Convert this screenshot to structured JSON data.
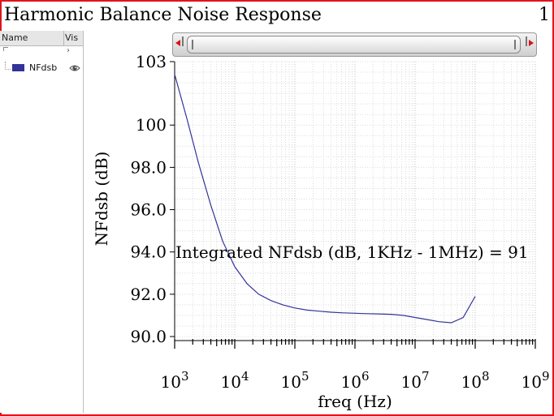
{
  "window": {
    "title": "Harmonic Balance Noise Response",
    "page_number": "1"
  },
  "side_panel": {
    "col_name": "Name",
    "col_vis": "Vis",
    "collapse_glyph": "›",
    "items": [
      {
        "label": "NFdsb",
        "color": "#33339a",
        "visibility_icon": "eye-icon"
      }
    ]
  },
  "scrollbar": {
    "left_arrow_icon": "arrow-left-icon",
    "right_arrow_icon": "arrow-right-icon",
    "arrow_color": "#d8141e"
  },
  "chart_data": {
    "type": "line",
    "xlabel": "freq (Hz)",
    "ylabel": "NFdsb (dB)",
    "x_scale": "log",
    "xlim": [
      1000,
      1000000000
    ],
    "ylim": [
      90.0,
      103.0
    ],
    "x_ticks": [
      {
        "base": "10",
        "exp": "3",
        "value": 1000
      },
      {
        "base": "10",
        "exp": "4",
        "value": 10000
      },
      {
        "base": "10",
        "exp": "5",
        "value": 100000
      },
      {
        "base": "10",
        "exp": "6",
        "value": 1000000
      },
      {
        "base": "10",
        "exp": "7",
        "value": 10000000
      },
      {
        "base": "10",
        "exp": "8",
        "value": 100000000
      },
      {
        "base": "10",
        "exp": "9",
        "value": 1000000000
      }
    ],
    "y_ticks": [
      {
        "label": "90.0",
        "value": 90.0
      },
      {
        "label": "92.0",
        "value": 92.0
      },
      {
        "label": "94.0",
        "value": 94.0
      },
      {
        "label": "96.0",
        "value": 96.0
      },
      {
        "label": "98.0",
        "value": 98.0
      },
      {
        "label": "100",
        "value": 100.0
      },
      {
        "label": "103",
        "value": 103.0
      }
    ],
    "grid": true,
    "annotation": "Integrated NFdsb (dB, 1KHz - 1MHz) = 91",
    "series": [
      {
        "name": "NFdsb",
        "color": "#33339a",
        "x": [
          1000,
          1600,
          2500,
          4000,
          6300,
          10000,
          16000,
          25000,
          40000,
          63000,
          100000,
          160000,
          250000,
          400000,
          630000,
          1000000,
          1600000,
          2500000,
          4000000,
          6300000,
          10000000,
          16000000,
          25000000,
          40000000,
          63000000,
          100000000
        ],
        "y": [
          102.4,
          100.3,
          98.2,
          96.2,
          94.5,
          93.3,
          92.5,
          92.0,
          91.7,
          91.5,
          91.35,
          91.25,
          91.2,
          91.15,
          91.12,
          91.1,
          91.08,
          91.07,
          91.05,
          91.0,
          90.9,
          90.8,
          90.7,
          90.65,
          90.9,
          91.9
        ]
      }
    ]
  }
}
